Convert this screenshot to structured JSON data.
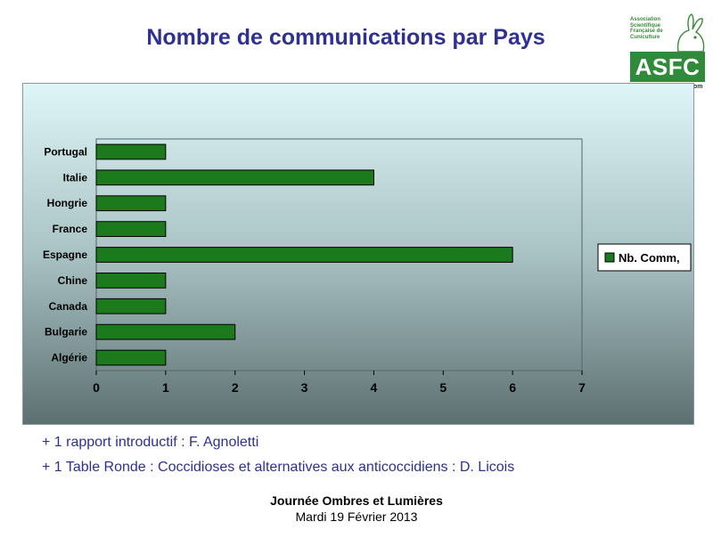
{
  "slide": {
    "title": "Nombre de communications par Pays"
  },
  "logo": {
    "text": "Association Scientifique Française de Cuniculture",
    "acronym": "ASFC",
    "suffix": "om"
  },
  "chart_data": {
    "type": "bar",
    "orientation": "horizontal",
    "categories": [
      "Portugal",
      "Italie",
      "Hongrie",
      "France",
      "Espagne",
      "Chine",
      "Canada",
      "Bulgarie",
      "Algérie"
    ],
    "series": [
      {
        "name": "Nb. Comm,",
        "values": [
          1,
          4,
          1,
          1,
          6,
          1,
          1,
          2,
          1
        ],
        "color": "#1c7a1c"
      }
    ],
    "xlim": [
      0,
      7
    ],
    "x_ticks": [
      "0",
      "1",
      "2",
      "3",
      "4",
      "5",
      "6",
      "7"
    ],
    "grid": false,
    "legend_position": "right"
  },
  "notes": [
    "+ 1 rapport introductif : F. Agnoletti",
    "+ 1 Table Ronde : Coccidioses et alternatives aux anticoccidiens : D. Licois"
  ],
  "footer": {
    "event": "Journée Ombres et Lumières",
    "date": "Mardi 19 Février 2013"
  }
}
